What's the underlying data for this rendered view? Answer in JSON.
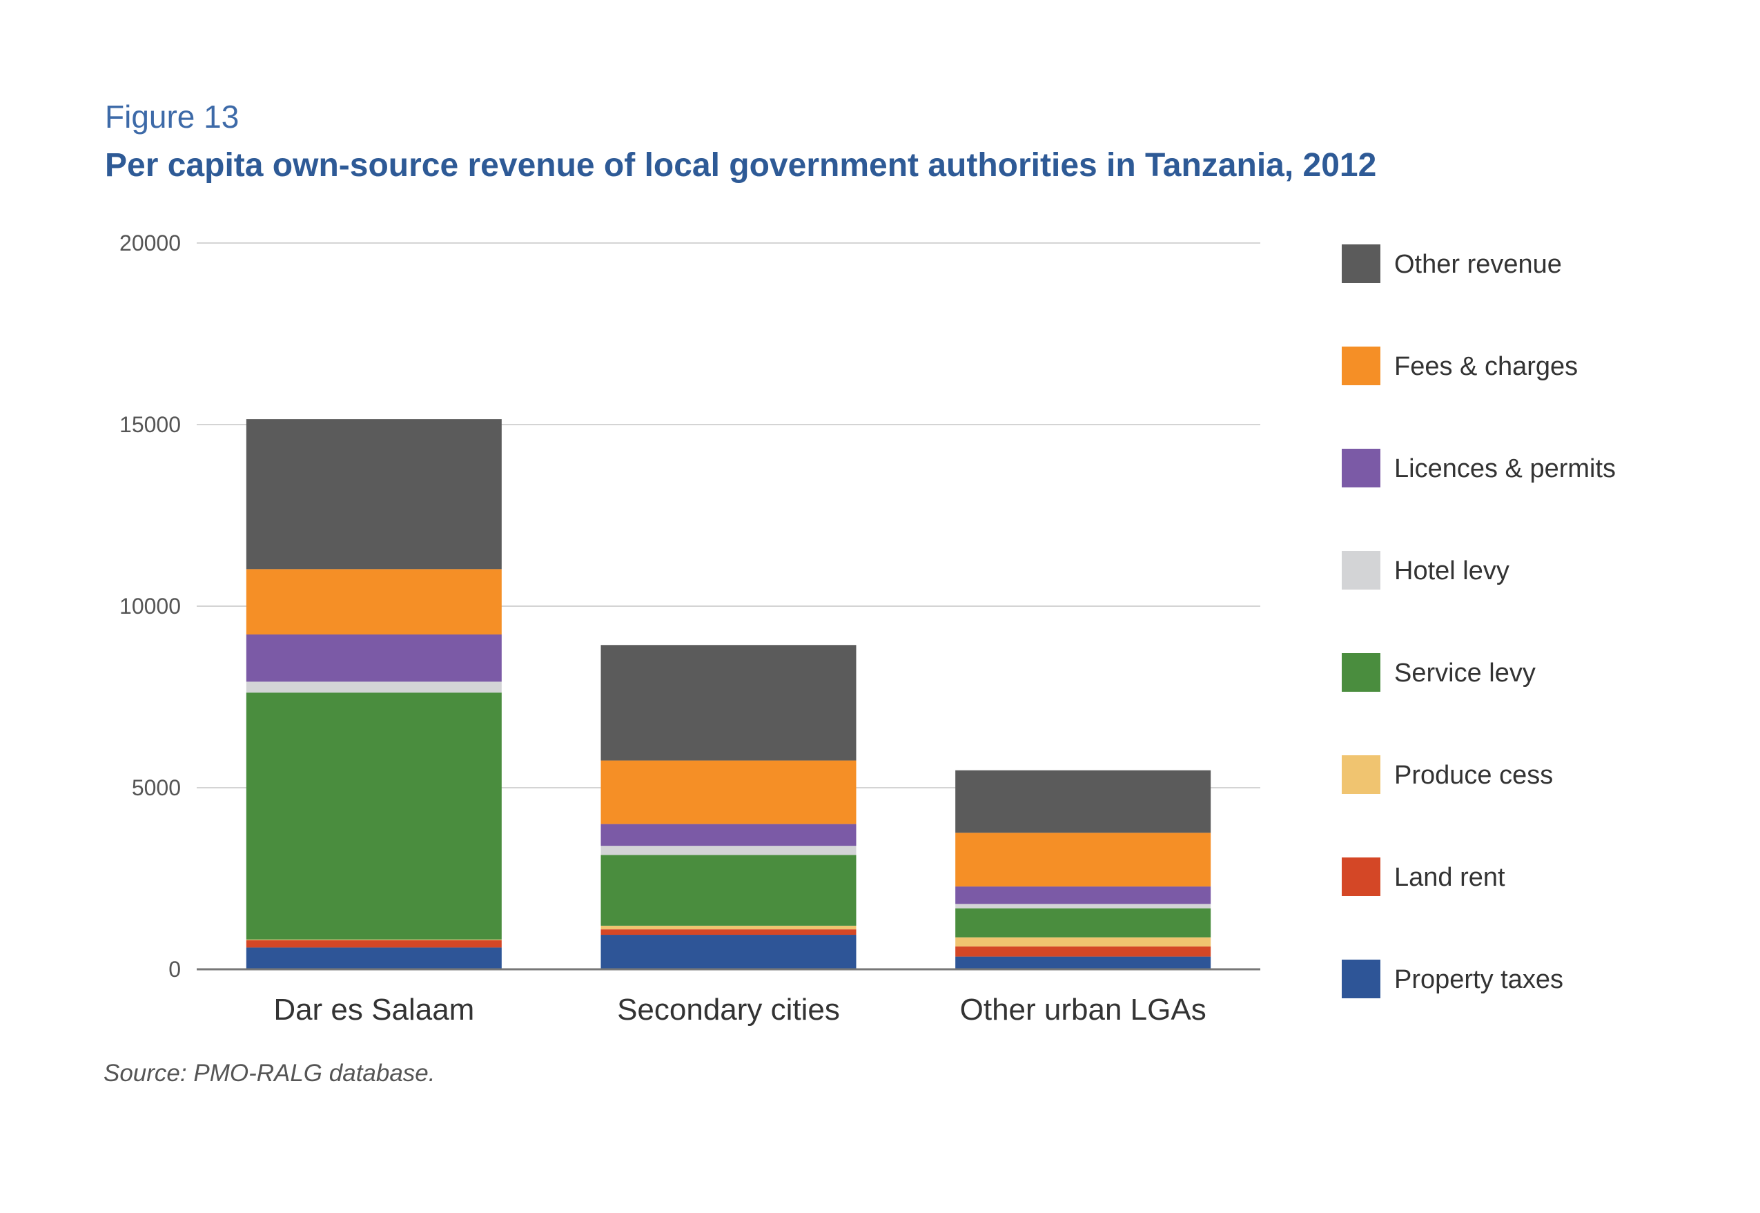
{
  "figure_label": "Figure 13",
  "title": "Per capita own-source revenue of local government authorities in Tanzania, 2012",
  "source": "Source: PMO-RALG database.",
  "chart_data": {
    "type": "bar",
    "stacked": true,
    "categories": [
      "Dar es Salaam",
      "Secondary cities",
      "Other urban LGAs"
    ],
    "ylim": [
      0,
      20000
    ],
    "yticks": [
      "0",
      "5000",
      "10000",
      "15000",
      "20000"
    ],
    "grid": true,
    "legend_position": "right",
    "series": [
      {
        "name": "Property taxes",
        "color": "#2e5597",
        "values": [
          600,
          950,
          350
        ]
      },
      {
        "name": "Land rent",
        "color": "#d44726",
        "values": [
          200,
          150,
          280
        ]
      },
      {
        "name": "Produce cess",
        "color": "#f0c470",
        "values": [
          20,
          100,
          250
        ]
      },
      {
        "name": "Service levy",
        "color": "#4a8d3e",
        "values": [
          6800,
          1950,
          800
        ]
      },
      {
        "name": "Hotel levy",
        "color": "#d3d4d6",
        "values": [
          300,
          250,
          120
        ]
      },
      {
        "name": "Licences & permits",
        "color": "#7b5aa6",
        "values": [
          1300,
          600,
          480
        ]
      },
      {
        "name": "Fees & charges",
        "color": "#f58f26",
        "values": [
          1800,
          1750,
          1480
        ]
      },
      {
        "name": "Other revenue",
        "color": "#5b5b5b",
        "values": [
          4130,
          3180,
          1720
        ]
      }
    ]
  }
}
